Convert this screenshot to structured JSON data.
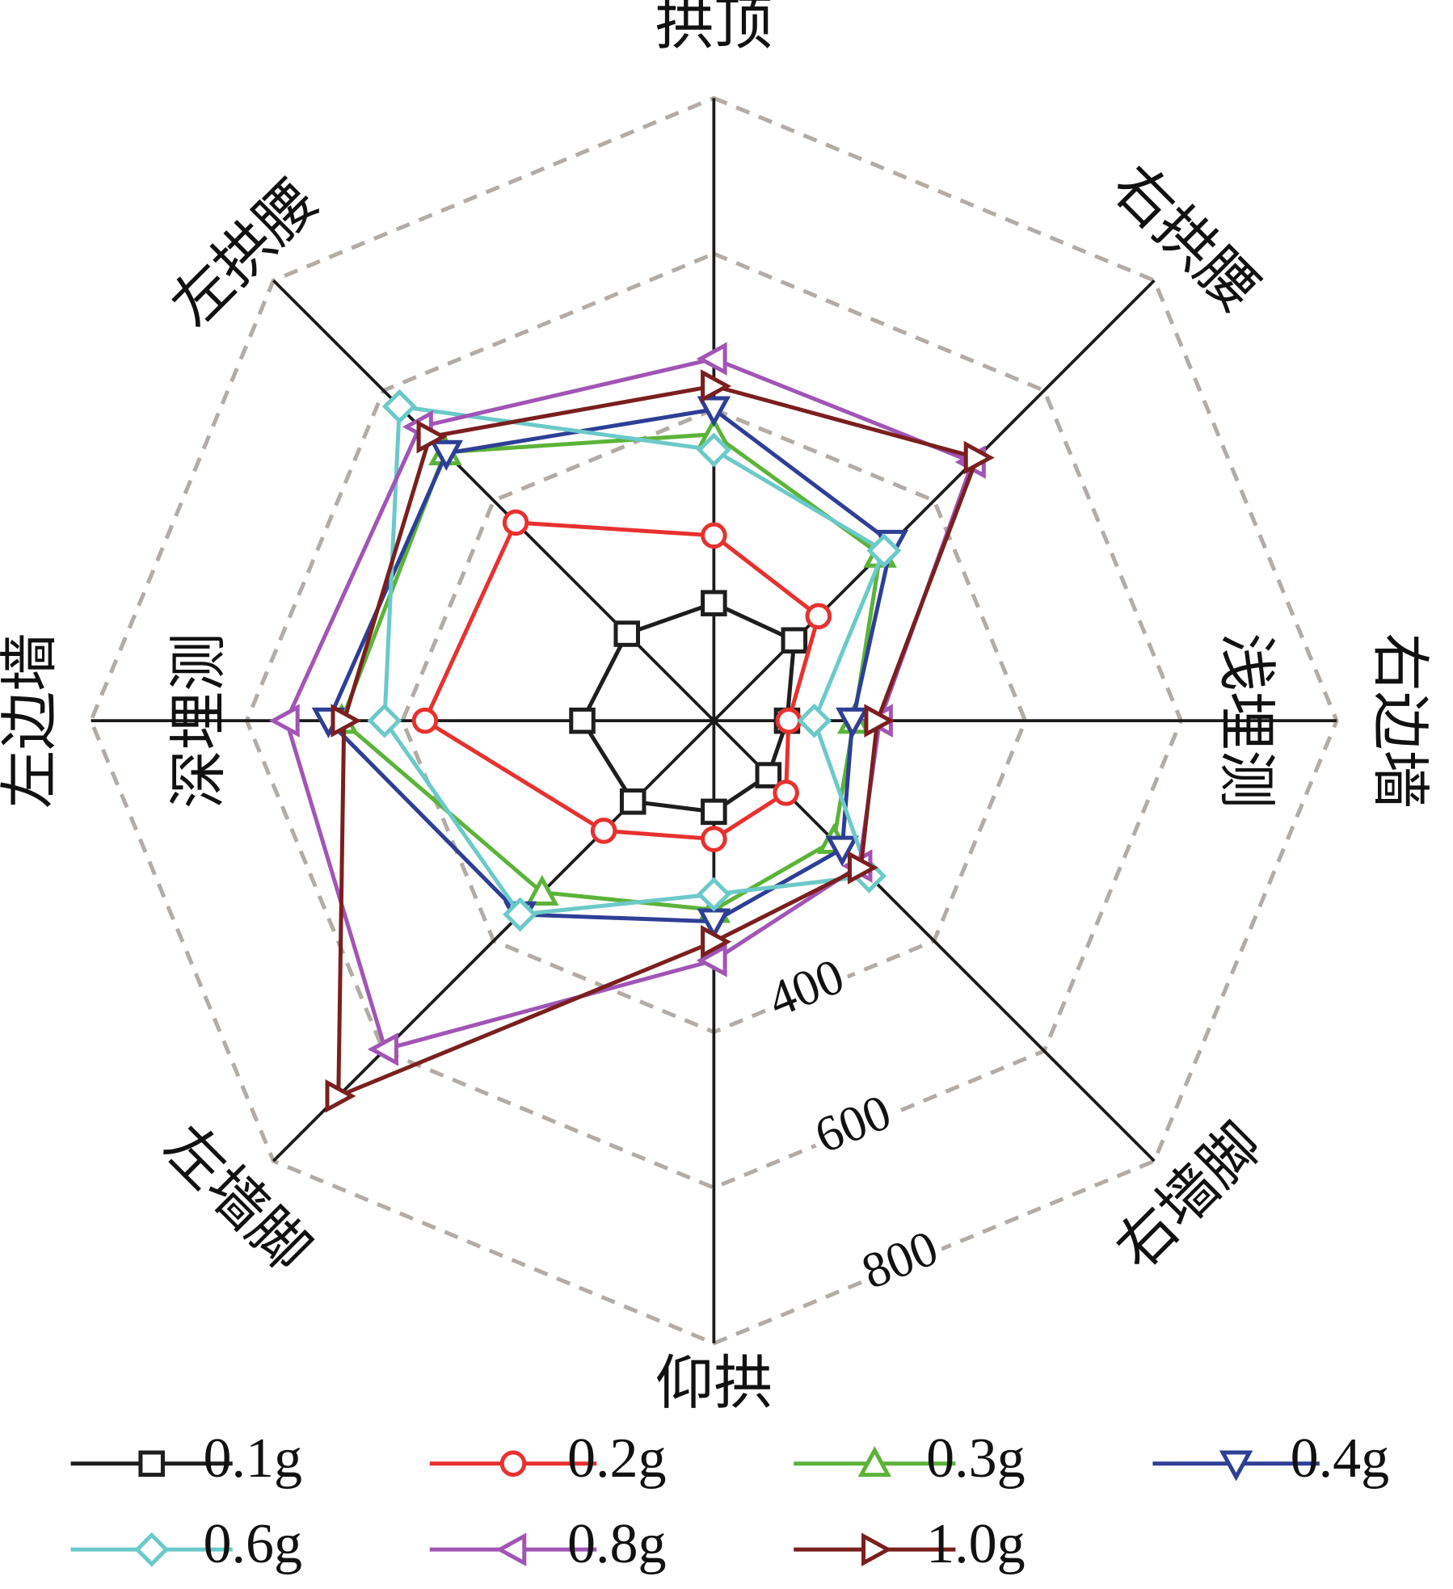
{
  "chart_data": {
    "type": "radar",
    "categories": [
      "拱顶",
      "右拱腰",
      "右边墙",
      "右墙脚",
      "仰拱",
      "左墙脚",
      "左边墙",
      "左拱腰"
    ],
    "annotations": [
      "浅埋测",
      "深埋测"
    ],
    "ylim": [
      0,
      800
    ],
    "yticks": [
      400,
      600,
      800
    ],
    "grid": true,
    "legend": "bottom",
    "series": [
      {
        "name": "0.1g",
        "color": "#1e1e1e",
        "marker": "square",
        "values": [
          151,
          146,
          94,
          99,
          117,
          147,
          169,
          158
        ]
      },
      {
        "name": "0.2g",
        "color": "#e8312f",
        "marker": "circle",
        "values": [
          238,
          190,
          96,
          131,
          152,
          200,
          371,
          360
        ]
      },
      {
        "name": "0.3g",
        "color": "#5cb33a",
        "marker": "triangle-up",
        "values": [
          368,
          302,
          180,
          218,
          243,
          312,
          478,
          488
        ]
      },
      {
        "name": "0.4g",
        "color": "#2e3f95",
        "marker": "triangle-down",
        "values": [
          400,
          323,
          178,
          233,
          258,
          352,
          495,
          486
        ]
      },
      {
        "name": "0.6g",
        "color": "#6cc9c9",
        "marker": "diamond",
        "values": [
          348,
          309,
          129,
          282,
          223,
          352,
          423,
          571
        ]
      },
      {
        "name": "0.8g",
        "color": "#a155b5",
        "marker": "triangle-left",
        "values": [
          465,
          470,
          213,
          264,
          308,
          597,
          549,
          534
        ]
      },
      {
        "name": "1.0g",
        "color": "#7a1f1f",
        "marker": "triangle-right",
        "values": [
          430,
          478,
          210,
          267,
          284,
          682,
          475,
          516
        ]
      }
    ]
  }
}
